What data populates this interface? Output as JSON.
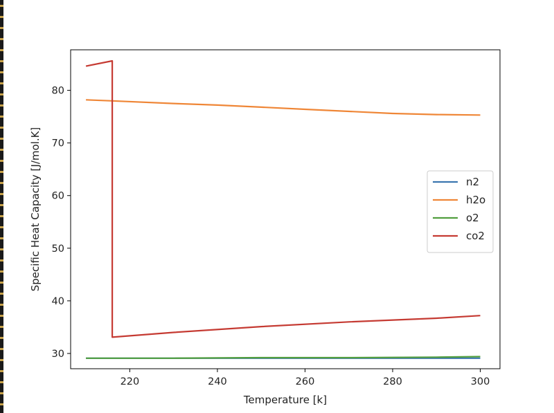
{
  "chart_data": {
    "type": "line",
    "title": "",
    "xlabel": "Temperature [k]",
    "ylabel": "Specific Heat Capacity [J/mol.K]",
    "xlim": [
      206.5,
      304.5
    ],
    "ylim": [
      27.1,
      87.7
    ],
    "x_ticks": [
      220,
      240,
      260,
      280,
      300
    ],
    "y_ticks": [
      30,
      40,
      50,
      60,
      70,
      80
    ],
    "grid": false,
    "legend_position": "center-right",
    "series": [
      {
        "name": "n2",
        "color": "#3b76af",
        "x": [
          210,
          216,
          230,
          250,
          270,
          290,
          300
        ],
        "y": [
          29.1,
          29.1,
          29.1,
          29.1,
          29.1,
          29.1,
          29.1
        ]
      },
      {
        "name": "h2o",
        "color": "#ef8636",
        "x": [
          210,
          216,
          230,
          240,
          250,
          260,
          270,
          280,
          290,
          300
        ],
        "y": [
          78.2,
          78.0,
          77.5,
          77.2,
          76.8,
          76.4,
          76.0,
          75.6,
          75.4,
          75.3
        ]
      },
      {
        "name": "o2",
        "color": "#519e3e",
        "x": [
          210,
          216,
          230,
          250,
          270,
          290,
          300
        ],
        "y": [
          29.1,
          29.1,
          29.1,
          29.2,
          29.2,
          29.3,
          29.4
        ]
      },
      {
        "name": "co2",
        "color": "#c53a32",
        "x": [
          210,
          216,
          216,
          230,
          250,
          270,
          290,
          300
        ],
        "y": [
          84.6,
          85.6,
          33.1,
          34.0,
          35.1,
          36.0,
          36.7,
          37.2
        ]
      }
    ]
  }
}
